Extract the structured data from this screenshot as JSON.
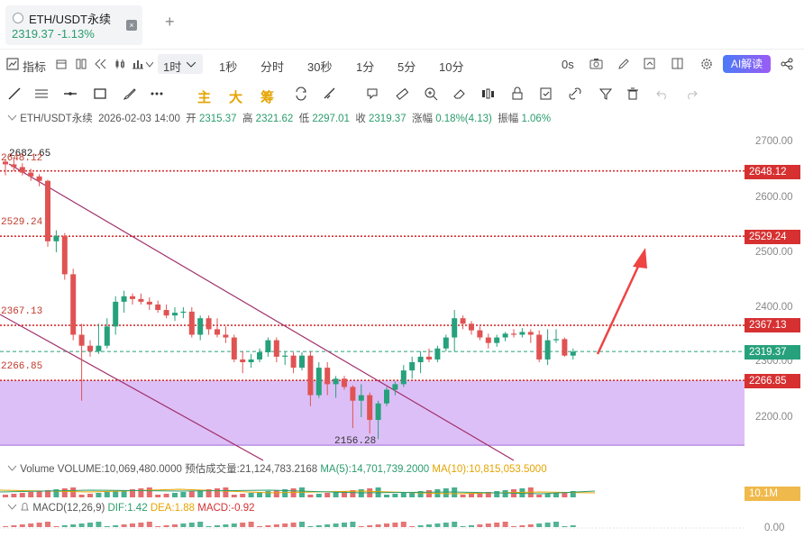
{
  "tab": {
    "title": "ETH/USDT永续",
    "price_change": "2319.37 -1.13%",
    "close": "×",
    "add": "+"
  },
  "toolbar": {
    "indicator_label": "指标",
    "intervals": [
      "1时",
      "1秒",
      "分时",
      "30秒",
      "1分",
      "5分",
      "10分"
    ],
    "zero_s": "0s",
    "ai_label": "AI解读"
  },
  "drawing": {
    "chars": [
      "主",
      "大",
      "筹"
    ]
  },
  "info": {
    "symbol": "ETH/USDT永续",
    "datetime": "2026-02-03 14:00",
    "open_label": "开",
    "open": "2315.37",
    "high_label": "高",
    "high": "2321.62",
    "low_label": "低",
    "low": "2297.01",
    "close_label": "收",
    "close": "2319.37",
    "chg_label": "涨幅",
    "chg": "0.18%(4.13)",
    "amp_label": "振幅",
    "amp": "1.06%"
  },
  "axis": {
    "ticks": [
      "2700.00",
      "2600.00",
      "2500.00",
      "2400.00",
      "2300.00",
      "2200.00"
    ]
  },
  "levels": {
    "l2648": "2648.12",
    "l2529": "2529.24",
    "l2367": "2367.13",
    "current": "2319.37",
    "l2266": "2266.85",
    "high_mark": "2682.65",
    "low_mark": "2156.28"
  },
  "volume": {
    "name": "Volume",
    "volume": "VOLUME:10,069,480.0000",
    "predicted": "预估成交量:21,124,783.2168",
    "ma5": "MA(5):14,701,739.2000",
    "ma10": "MA(10):10,815,053.5000",
    "axis_value": "10.1M"
  },
  "macd": {
    "name": "MACD(12,26,9)",
    "dif": "DIF:1.42",
    "dea": "DEA:1.88",
    "macd": "MACD:-0.92",
    "axis_value": "0.00"
  },
  "colors": {
    "up": "#26a17b",
    "down": "#e05353",
    "level": "#d63031",
    "zone": "#d9b8f6",
    "trendline": "#a0306a",
    "arrow": "#ee4444"
  }
}
